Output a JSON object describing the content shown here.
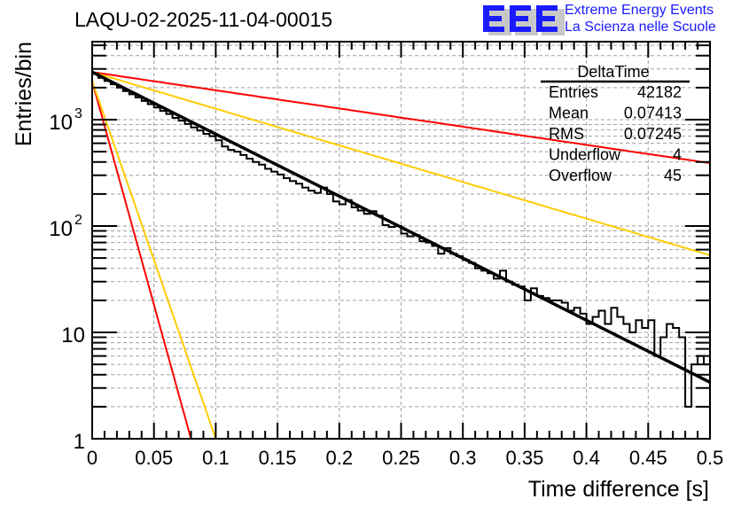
{
  "header": {
    "run_title": "LAQU-02-2025-11-04-00015",
    "logo_letters": "EEE",
    "logo_line1": "Extreme Energy Events",
    "logo_line2": "La Scienza nelle Scuole",
    "logo_color": "#1a1aff"
  },
  "stats_box": {
    "name": "DeltaTime",
    "rows": [
      {
        "label": "Entries",
        "value": "42182"
      },
      {
        "label": "Mean",
        "value": "0.07413"
      },
      {
        "label": "RMS",
        "value": "0.07245"
      },
      {
        "label": "Underflow",
        "value": "4"
      },
      {
        "label": "Overflow",
        "value": "45"
      }
    ]
  },
  "chart_data": {
    "type": "line",
    "title": "LAQU-02-2025-11-04-00015",
    "xlabel": "Time difference [s]",
    "ylabel": "Entries/bin",
    "xlim": [
      0,
      0.5
    ],
    "ylim": [
      1,
      5400
    ],
    "yscale": "log",
    "grid": true,
    "x_ticks": [
      "0",
      "0.05",
      "0.1",
      "0.15",
      "0.2",
      "0.25",
      "0.3",
      "0.35",
      "0.4",
      "0.45",
      "0.5"
    ],
    "y_ticks": [
      {
        "value": 1,
        "label": "1"
      },
      {
        "value": 10,
        "label": "10"
      },
      {
        "value": 100,
        "label": "10",
        "sup": "2"
      },
      {
        "value": 1000,
        "label": "10",
        "sup": "3"
      }
    ],
    "histogram": {
      "name": "DeltaTime",
      "bin_width": 0.005,
      "x_start": 0,
      "color": "#000000",
      "values": [
        2700,
        2480,
        2310,
        2150,
        2000,
        1860,
        1730,
        1620,
        1500,
        1400,
        1300,
        1210,
        1130,
        1040,
        980,
        910,
        845,
        790,
        735,
        700,
        640,
        560,
        520,
        500,
        465,
        430,
        400,
        378,
        345,
        325,
        305,
        282,
        265,
        250,
        230,
        215,
        205,
        230,
        200,
        170,
        160,
        175,
        150,
        140,
        130,
        138,
        125,
        102,
        98,
        100,
        85,
        80,
        82,
        72,
        70,
        65,
        55,
        62,
        55,
        52,
        48,
        45,
        40,
        38,
        36,
        32,
        38,
        30,
        28,
        27,
        20,
        26,
        22,
        21,
        20,
        20,
        19,
        16,
        17,
        15,
        12,
        14,
        16,
        12,
        17,
        14,
        12,
        10,
        13,
        11,
        13,
        6,
        9,
        12,
        11,
        9,
        2,
        5,
        6,
        5
      ],
      "overflow_tail": [
        8
      ]
    },
    "series": [
      {
        "name": "fit",
        "color": "#000000",
        "model": "exp",
        "y0": 2800,
        "rate": 13.43,
        "x_range": [
          0,
          0.5
        ]
      },
      {
        "name": "red-slow",
        "color": "#ff0000",
        "model": "exp",
        "y0": 2800,
        "rate": 3.94,
        "x_range": [
          0,
          0.5
        ]
      },
      {
        "name": "yellow-slow",
        "color": "#ffcc00",
        "model": "exp",
        "y0": 2800,
        "rate": 7.93,
        "x_range": [
          0,
          0.5
        ]
      },
      {
        "name": "red-fast",
        "color": "#ff0000",
        "model": "exp",
        "y0": 2300,
        "rate": 96.8,
        "x_range": [
          0,
          0.08
        ]
      },
      {
        "name": "yellow-fast",
        "color": "#ffcc00",
        "model": "exp",
        "y0": 2300,
        "rate": 77.4,
        "x_range": [
          0,
          0.1
        ]
      }
    ]
  }
}
